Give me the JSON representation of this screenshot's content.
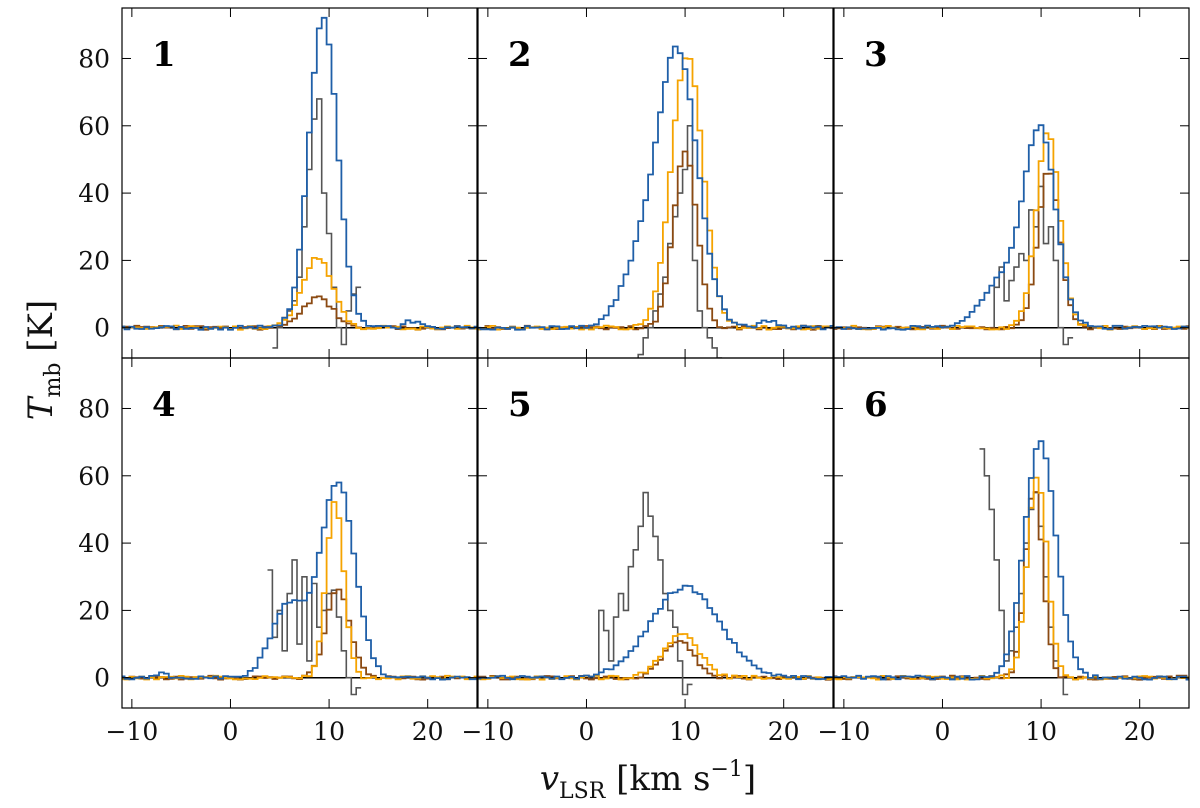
{
  "chart_data": {
    "type": "line",
    "layout": "2x3 grid of panels, shared axes",
    "xlabel": "v",
    "xlabel_sub": "LSR",
    "xunit": "km s",
    "xunit_sup": "−1",
    "ylabel": "T",
    "ylabel_sub": "mb",
    "yunit": "K",
    "xlim": [
      -11,
      25
    ],
    "ylim": [
      -9,
      95
    ],
    "xticks": [
      -10,
      0,
      10,
      20
    ],
    "yticks": [
      0,
      20,
      40,
      60,
      80
    ],
    "step": 0.5,
    "colors": {
      "blue": "#1f5fa8",
      "orange": "#f5a300",
      "brown": "#8b4a12",
      "gray": "#555555",
      "zero": "#000000"
    },
    "panels": [
      {
        "label": "1",
        "series": [
          {
            "color": "blue",
            "shape": "gauss",
            "peaks": [
              [
                9.4,
                1.45,
                92
              ]
            ],
            "range": [
              -11,
              25
            ],
            "extra": [
              [
                18.5,
                0.8,
                2
              ]
            ]
          },
          {
            "color": "orange",
            "shape": "gauss",
            "peaks": [
              [
                8.8,
                1.5,
                21
              ]
            ],
            "range": [
              -11,
              25
            ]
          },
          {
            "color": "brown",
            "shape": "gauss",
            "peaks": [
              [
                8.9,
                1.5,
                9
              ]
            ],
            "range": [
              -11,
              25
            ]
          },
          {
            "color": "gray",
            "shape": "points",
            "points": [
              [
                4.5,
                -6
              ],
              [
                5,
                0
              ],
              [
                5.5,
                3
              ],
              [
                6,
                5
              ],
              [
                6.5,
                8
              ],
              [
                7,
                15
              ],
              [
                7.5,
                30
              ],
              [
                8,
                47
              ],
              [
                8.5,
                62
              ],
              [
                9,
                68
              ],
              [
                9.5,
                40
              ],
              [
                10,
                28
              ],
              [
                10.5,
                12
              ],
              [
                11,
                0
              ],
              [
                11.5,
                -5
              ],
              [
                12,
                5
              ],
              [
                12.5,
                10
              ],
              [
                13,
                12
              ]
            ]
          }
        ]
      },
      {
        "label": "2",
        "series": [
          {
            "color": "blue",
            "shape": "gauss",
            "peaks": [
              [
                9.3,
                2.0,
                80
              ],
              [
                5.5,
                2.0,
                18
              ]
            ],
            "range": [
              -11,
              25
            ],
            "extra": [
              [
                18.5,
                0.8,
                2
              ]
            ]
          },
          {
            "color": "orange",
            "shape": "gauss",
            "peaks": [
              [
                10.2,
                1.6,
                81
              ]
            ],
            "range": [
              -11,
              25
            ]
          },
          {
            "color": "brown",
            "shape": "gauss",
            "peaks": [
              [
                10.0,
                1.2,
                52
              ]
            ],
            "range": [
              -11,
              25
            ]
          },
          {
            "color": "gray",
            "shape": "points",
            "points": [
              [
                5,
                -10
              ],
              [
                5.5,
                -8
              ],
              [
                6,
                -3
              ],
              [
                6.5,
                0
              ],
              [
                7,
                5
              ],
              [
                7.5,
                10
              ],
              [
                8,
                15
              ],
              [
                8.5,
                25
              ],
              [
                9,
                33
              ],
              [
                9.5,
                40
              ],
              [
                10,
                47
              ],
              [
                10.5,
                60
              ],
              [
                11,
                20
              ],
              [
                11.5,
                5
              ],
              [
                12,
                0
              ],
              [
                12.5,
                -3
              ],
              [
                13,
                -6
              ],
              [
                13.5,
                -9
              ]
            ]
          }
        ]
      },
      {
        "label": "3",
        "series": [
          {
            "color": "blue",
            "shape": "gauss",
            "peaks": [
              [
                9.9,
                1.6,
                58
              ],
              [
                6.0,
                2.0,
                14
              ]
            ],
            "range": [
              -11,
              25
            ]
          },
          {
            "color": "orange",
            "shape": "gauss",
            "peaks": [
              [
                10.7,
                1.2,
                58
              ]
            ],
            "range": [
              -11,
              25
            ]
          },
          {
            "color": "brown",
            "shape": "gauss",
            "peaks": [
              [
                10.8,
                1.1,
                47
              ]
            ],
            "range": [
              -11,
              25
            ]
          },
          {
            "color": "gray",
            "shape": "points",
            "points": [
              [
                5,
                0
              ],
              [
                5.5,
                12
              ],
              [
                6,
                18
              ],
              [
                6.5,
                8
              ],
              [
                7,
                14
              ],
              [
                7.5,
                18
              ],
              [
                8,
                22
              ],
              [
                8.5,
                20
              ],
              [
                9,
                35
              ],
              [
                9.5,
                30
              ],
              [
                10,
                42
              ],
              [
                10.5,
                25
              ],
              [
                11,
                30
              ],
              [
                11.5,
                20
              ],
              [
                12,
                0
              ],
              [
                12.5,
                -5
              ],
              [
                13,
                -3
              ]
            ]
          }
        ]
      },
      {
        "label": "4",
        "series": [
          {
            "color": "blue",
            "shape": "gauss",
            "peaks": [
              [
                10.9,
                1.7,
                58
              ],
              [
                6.0,
                1.8,
                22
              ]
            ],
            "range": [
              -11,
              25
            ],
            "extra": [
              [
                -7,
                0.8,
                1
              ]
            ]
          },
          {
            "color": "orange",
            "shape": "gauss",
            "peaks": [
              [
                10.6,
                0.9,
                52
              ]
            ],
            "range": [
              -11,
              25
            ]
          },
          {
            "color": "brown",
            "shape": "gauss",
            "peaks": [
              [
                10.9,
                1.2,
                26
              ]
            ],
            "range": [
              -11,
              25
            ]
          },
          {
            "color": "gray",
            "shape": "points",
            "points": [
              [
                4,
                32
              ],
              [
                4.5,
                12
              ],
              [
                5,
                20
              ],
              [
                5.5,
                8
              ],
              [
                6,
                25
              ],
              [
                6.5,
                35
              ],
              [
                7,
                10
              ],
              [
                7.5,
                30
              ],
              [
                8,
                5
              ],
              [
                8.5,
                28
              ],
              [
                9,
                15
              ],
              [
                9.5,
                20
              ],
              [
                10,
                25
              ],
              [
                10.5,
                26
              ],
              [
                11,
                18
              ],
              [
                11.5,
                8
              ],
              [
                12,
                0
              ],
              [
                12.5,
                -5
              ],
              [
                13,
                -3
              ]
            ]
          }
        ]
      },
      {
        "label": "5",
        "series": [
          {
            "color": "blue",
            "shape": "gauss",
            "peaks": [
              [
                10.0,
                3.5,
                27
              ]
            ],
            "range": [
              -11,
              25
            ]
          },
          {
            "color": "orange",
            "shape": "gauss",
            "peaks": [
              [
                9.6,
                1.8,
                13
              ]
            ],
            "range": [
              -11,
              25
            ]
          },
          {
            "color": "brown",
            "shape": "gauss",
            "peaks": [
              [
                9.3,
                1.6,
                11
              ]
            ],
            "range": [
              -11,
              25
            ]
          },
          {
            "color": "gray",
            "shape": "points",
            "points": [
              [
                1,
                0
              ],
              [
                1.5,
                20
              ],
              [
                2,
                14
              ],
              [
                2.5,
                5
              ],
              [
                3,
                18
              ],
              [
                3.5,
                25
              ],
              [
                4,
                20
              ],
              [
                4.5,
                33
              ],
              [
                5,
                38
              ],
              [
                5.5,
                45
              ],
              [
                6,
                55
              ],
              [
                6.5,
                48
              ],
              [
                7,
                42
              ],
              [
                7.5,
                35
              ],
              [
                8,
                25
              ],
              [
                8.5,
                20
              ],
              [
                9,
                15
              ],
              [
                9.5,
                5
              ],
              [
                10,
                -5
              ],
              [
                10.5,
                -2
              ]
            ]
          }
        ]
      },
      {
        "label": "6",
        "series": [
          {
            "color": "blue",
            "shape": "gauss",
            "peaks": [
              [
                9.9,
                1.6,
                70
              ]
            ],
            "range": [
              -11,
              25
            ]
          },
          {
            "color": "orange",
            "shape": "gauss",
            "peaks": [
              [
                9.6,
                1.0,
                60
              ]
            ],
            "range": [
              -11,
              25
            ]
          },
          {
            "color": "brown",
            "shape": "gauss",
            "peaks": [
              [
                9.3,
                0.9,
                56
              ]
            ],
            "range": [
              -11,
              25
            ]
          },
          {
            "color": "gray",
            "shape": "points",
            "points": [
              [
                4,
                68
              ],
              [
                4.5,
                60
              ],
              [
                5,
                50
              ],
              [
                5.5,
                35
              ],
              [
                6,
                20
              ],
              [
                6.5,
                5
              ],
              [
                7,
                8
              ],
              [
                7.5,
                15
              ],
              [
                8,
                25
              ],
              [
                8.5,
                40
              ],
              [
                9,
                50
              ],
              [
                9.5,
                55
              ],
              [
                10,
                45
              ],
              [
                10.5,
                30
              ],
              [
                11,
                15
              ],
              [
                11.5,
                5
              ],
              [
                12,
                0
              ],
              [
                12.5,
                -5
              ]
            ]
          }
        ]
      }
    ]
  }
}
